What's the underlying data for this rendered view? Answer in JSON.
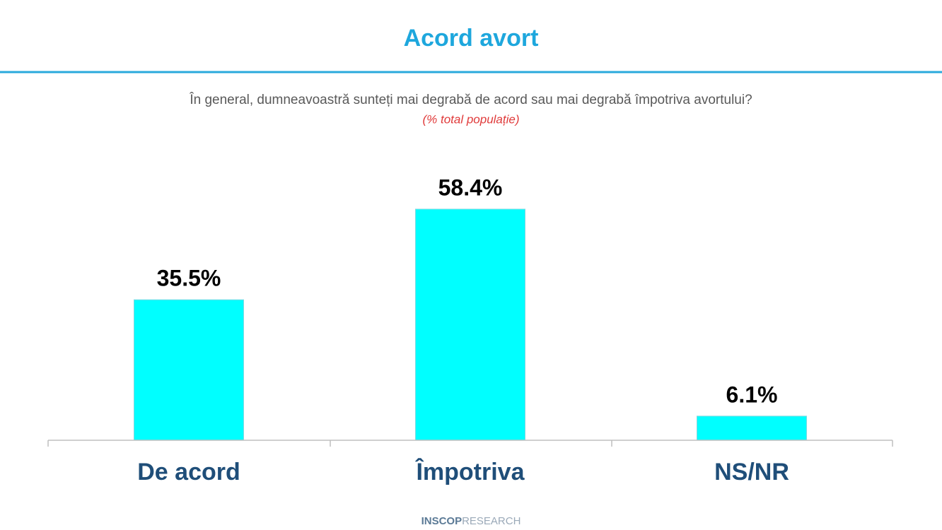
{
  "chart_data": {
    "type": "bar",
    "title": "Acord avort",
    "subtitle": "În general, dumneavoastră sunteți mai degrabă de acord sau mai degrabă împotriva avortului?",
    "note": "(% total populație)",
    "categories": [
      "De acord",
      "Împotriva",
      "NS/NR"
    ],
    "values": [
      35.5,
      58.4,
      6.1
    ],
    "value_labels": [
      "35.5%",
      "58.4%",
      "6.1%"
    ],
    "color": "#00ffff"
  },
  "footer": {
    "brand": "INSCOP",
    "suffix": "RESEARCH"
  }
}
